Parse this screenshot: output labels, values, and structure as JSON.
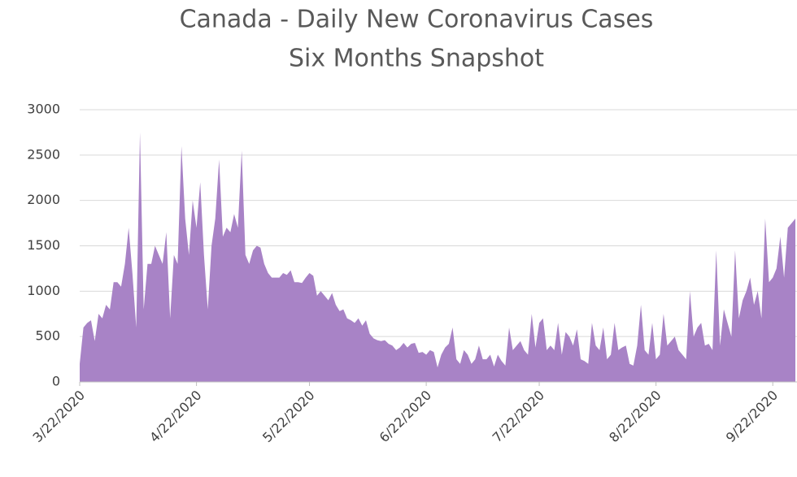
{
  "chart_data": {
    "type": "area",
    "title": "Canada - Daily New Coronavirus Cases",
    "subtitle": "Six Months Snapshot",
    "x": [
      "2020-03-22",
      "2020-03-23",
      "2020-03-24",
      "2020-03-25",
      "2020-03-26",
      "2020-03-27",
      "2020-03-28",
      "2020-03-29",
      "2020-03-30",
      "2020-03-31",
      "2020-04-01",
      "2020-04-02",
      "2020-04-03",
      "2020-04-04",
      "2020-04-05",
      "2020-04-06",
      "2020-04-07",
      "2020-04-08",
      "2020-04-09",
      "2020-04-10",
      "2020-04-11",
      "2020-04-12",
      "2020-04-13",
      "2020-04-14",
      "2020-04-15",
      "2020-04-16",
      "2020-04-17",
      "2020-04-18",
      "2020-04-19",
      "2020-04-20",
      "2020-04-21",
      "2020-04-22",
      "2020-04-23",
      "2020-04-24",
      "2020-04-25",
      "2020-04-26",
      "2020-04-27",
      "2020-04-28",
      "2020-04-29",
      "2020-04-30",
      "2020-05-01",
      "2020-05-02",
      "2020-05-03",
      "2020-05-04",
      "2020-05-05",
      "2020-05-06",
      "2020-05-07",
      "2020-05-08",
      "2020-05-09",
      "2020-05-10",
      "2020-05-11",
      "2020-05-12",
      "2020-05-13",
      "2020-05-14",
      "2020-05-15",
      "2020-05-16",
      "2020-05-17",
      "2020-05-18",
      "2020-05-19",
      "2020-05-20",
      "2020-05-21",
      "2020-05-22",
      "2020-05-23",
      "2020-05-24",
      "2020-05-25",
      "2020-05-26",
      "2020-05-27",
      "2020-05-28",
      "2020-05-29",
      "2020-05-30",
      "2020-05-31",
      "2020-06-01",
      "2020-06-02",
      "2020-06-03",
      "2020-06-04",
      "2020-06-05",
      "2020-06-06",
      "2020-06-07",
      "2020-06-08",
      "2020-06-09",
      "2020-06-10",
      "2020-06-11",
      "2020-06-12",
      "2020-06-13",
      "2020-06-14",
      "2020-06-15",
      "2020-06-16",
      "2020-06-17",
      "2020-06-18",
      "2020-06-19",
      "2020-06-20",
      "2020-06-21",
      "2020-06-22",
      "2020-06-23",
      "2020-06-24",
      "2020-06-25",
      "2020-06-26",
      "2020-06-27",
      "2020-06-28",
      "2020-06-29",
      "2020-06-30",
      "2020-07-01",
      "2020-07-02",
      "2020-07-03",
      "2020-07-04",
      "2020-07-05",
      "2020-07-06",
      "2020-07-07",
      "2020-07-08",
      "2020-07-09",
      "2020-07-10",
      "2020-07-11",
      "2020-07-12",
      "2020-07-13",
      "2020-07-14",
      "2020-07-15",
      "2020-07-16",
      "2020-07-17",
      "2020-07-18",
      "2020-07-19",
      "2020-07-20",
      "2020-07-21",
      "2020-07-22",
      "2020-07-23",
      "2020-07-24",
      "2020-07-25",
      "2020-07-26",
      "2020-07-27",
      "2020-07-28",
      "2020-07-29",
      "2020-07-30",
      "2020-07-31",
      "2020-08-01",
      "2020-08-02",
      "2020-08-03",
      "2020-08-04",
      "2020-08-05",
      "2020-08-06",
      "2020-08-07",
      "2020-08-08",
      "2020-08-09",
      "2020-08-10",
      "2020-08-11",
      "2020-08-12",
      "2020-08-13",
      "2020-08-14",
      "2020-08-15",
      "2020-08-16",
      "2020-08-17",
      "2020-08-18",
      "2020-08-19",
      "2020-08-20",
      "2020-08-21",
      "2020-08-22",
      "2020-08-23",
      "2020-08-24",
      "2020-08-25",
      "2020-08-26",
      "2020-08-27",
      "2020-08-28",
      "2020-08-29",
      "2020-08-30",
      "2020-08-31",
      "2020-09-01",
      "2020-09-02",
      "2020-09-03",
      "2020-09-04",
      "2020-09-05",
      "2020-09-06",
      "2020-09-07",
      "2020-09-08",
      "2020-09-09",
      "2020-09-10",
      "2020-09-11",
      "2020-09-12",
      "2020-09-13",
      "2020-09-14",
      "2020-09-15",
      "2020-09-16",
      "2020-09-17",
      "2020-09-18",
      "2020-09-19",
      "2020-09-20",
      "2020-09-21",
      "2020-09-22",
      "2020-09-23",
      "2020-09-24",
      "2020-09-25",
      "2020-09-26",
      "2020-09-27",
      "2020-09-28"
    ],
    "values": [
      200,
      600,
      650,
      680,
      450,
      750,
      700,
      850,
      800,
      1100,
      1100,
      1050,
      1300,
      1700,
      1200,
      600,
      2750,
      800,
      1300,
      1300,
      1500,
      1400,
      1300,
      1650,
      700,
      1400,
      1300,
      2600,
      1800,
      1400,
      2000,
      1700,
      2200,
      1400,
      800,
      1500,
      1800,
      2450,
      1600,
      1700,
      1650,
      1850,
      1700,
      2550,
      1400,
      1300,
      1450,
      1500,
      1480,
      1300,
      1200,
      1150,
      1150,
      1150,
      1200,
      1180,
      1230,
      1100,
      1100,
      1090,
      1150,
      1200,
      1170,
      950,
      1000,
      950,
      900,
      980,
      850,
      780,
      800,
      700,
      680,
      650,
      700,
      620,
      680,
      530,
      480,
      460,
      450,
      460,
      420,
      400,
      350,
      380,
      430,
      380,
      420,
      430,
      320,
      330,
      300,
      350,
      330,
      160,
      300,
      380,
      420,
      600,
      250,
      200,
      350,
      300,
      200,
      250,
      400,
      250,
      250,
      300,
      170,
      300,
      230,
      180,
      600,
      350,
      400,
      450,
      350,
      300,
      750,
      380,
      650,
      700,
      350,
      400,
      350,
      650,
      300,
      550,
      500,
      400,
      580,
      250,
      230,
      200,
      650,
      400,
      350,
      600,
      250,
      300,
      650,
      350,
      380,
      400,
      200,
      180,
      400,
      850,
      350,
      300,
      650,
      250,
      300,
      750,
      400,
      450,
      500,
      350,
      300,
      250,
      1000,
      500,
      600,
      650,
      400,
      420,
      350,
      1450,
      400,
      800,
      650,
      500,
      1450,
      700,
      900,
      1000,
      1150,
      850,
      1000,
      700,
      1800,
      1100,
      1150,
      1250,
      1600,
      1150,
      1700,
      1750,
      1800
    ],
    "color": "#a883c6",
    "xlim": [
      "2020-03-22",
      "2020-09-28"
    ],
    "xticks": [
      {
        "value": "2020-03-22",
        "label": "3/22/2020"
      },
      {
        "value": "2020-04-22",
        "label": "4/22/2020"
      },
      {
        "value": "2020-05-22",
        "label": "5/22/2020"
      },
      {
        "value": "2020-06-22",
        "label": "6/22/2020"
      },
      {
        "value": "2020-07-22",
        "label": "7/22/2020"
      },
      {
        "value": "2020-08-22",
        "label": "8/22/2020"
      },
      {
        "value": "2020-09-22",
        "label": "9/22/2020"
      }
    ],
    "ylim": [
      0,
      3000
    ],
    "yticks": [
      0,
      500,
      1000,
      1500,
      2000,
      2500,
      3000
    ],
    "grid": true
  }
}
